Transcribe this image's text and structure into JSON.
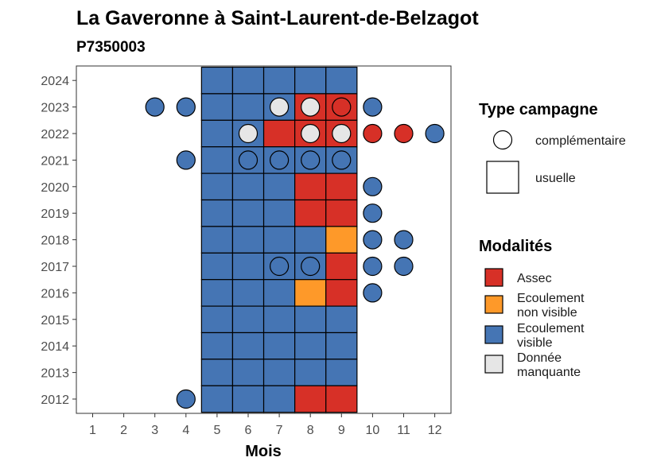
{
  "chart_data": {
    "type": "heatmap",
    "title": "La Gaveronne à Saint-Laurent-de-Belzagot",
    "subtitle": "P7350003",
    "xlabel": "Mois",
    "ylabel": "",
    "x_ticks": [
      1,
      2,
      3,
      4,
      5,
      6,
      7,
      8,
      9,
      10,
      11,
      12
    ],
    "y_ticks": [
      2012,
      2013,
      2014,
      2015,
      2016,
      2017,
      2018,
      2019,
      2020,
      2021,
      2022,
      2023,
      2024
    ],
    "grid": false,
    "colors": {
      "Assec": "#d73027",
      "Ecoulement non visible": "#fe9929",
      "Ecoulement visible": "#4575b4",
      "Donnée manquante": "#e6e6e6"
    },
    "usuelle": [
      {
        "year": 2024,
        "months": {
          "5": "Ecoulement visible",
          "6": "Ecoulement visible",
          "7": "Ecoulement visible",
          "8": "Ecoulement visible",
          "9": "Ecoulement visible"
        }
      },
      {
        "year": 2023,
        "months": {
          "5": "Ecoulement visible",
          "6": "Ecoulement visible",
          "7": "Ecoulement visible",
          "8": "Assec",
          "9": "Assec"
        }
      },
      {
        "year": 2022,
        "months": {
          "5": "Ecoulement visible",
          "6": "Ecoulement visible",
          "7": "Assec",
          "8": "Assec",
          "9": "Assec"
        }
      },
      {
        "year": 2021,
        "months": {
          "5": "Ecoulement visible",
          "6": "Ecoulement visible",
          "7": "Ecoulement visible",
          "8": "Ecoulement visible",
          "9": "Ecoulement visible"
        }
      },
      {
        "year": 2020,
        "months": {
          "5": "Ecoulement visible",
          "6": "Ecoulement visible",
          "7": "Ecoulement visible",
          "8": "Assec",
          "9": "Assec"
        }
      },
      {
        "year": 2019,
        "months": {
          "5": "Ecoulement visible",
          "6": "Ecoulement visible",
          "7": "Ecoulement visible",
          "8": "Assec",
          "9": "Assec"
        }
      },
      {
        "year": 2018,
        "months": {
          "5": "Ecoulement visible",
          "6": "Ecoulement visible",
          "7": "Ecoulement visible",
          "8": "Ecoulement visible",
          "9": "Ecoulement non visible"
        }
      },
      {
        "year": 2017,
        "months": {
          "5": "Ecoulement visible",
          "6": "Ecoulement visible",
          "7": "Ecoulement visible",
          "8": "Ecoulement visible",
          "9": "Assec"
        }
      },
      {
        "year": 2016,
        "months": {
          "5": "Ecoulement visible",
          "6": "Ecoulement visible",
          "7": "Ecoulement visible",
          "8": "Ecoulement non visible",
          "9": "Assec"
        }
      },
      {
        "year": 2015,
        "months": {
          "5": "Ecoulement visible",
          "6": "Ecoulement visible",
          "7": "Ecoulement visible",
          "8": "Ecoulement visible",
          "9": "Ecoulement visible"
        }
      },
      {
        "year": 2014,
        "months": {
          "5": "Ecoulement visible",
          "6": "Ecoulement visible",
          "7": "Ecoulement visible",
          "8": "Ecoulement visible",
          "9": "Ecoulement visible"
        }
      },
      {
        "year": 2013,
        "months": {
          "5": "Ecoulement visible",
          "6": "Ecoulement visible",
          "7": "Ecoulement visible",
          "8": "Ecoulement visible",
          "9": "Ecoulement visible"
        }
      },
      {
        "year": 2012,
        "months": {
          "5": "Ecoulement visible",
          "6": "Ecoulement visible",
          "7": "Ecoulement visible",
          "8": "Assec",
          "9": "Assec"
        }
      }
    ],
    "complementaire": [
      {
        "year": 2023,
        "month": 3,
        "modalite": "Ecoulement visible"
      },
      {
        "year": 2023,
        "month": 4,
        "modalite": "Ecoulement visible"
      },
      {
        "year": 2023,
        "month": 7,
        "modalite": "Donnée manquante"
      },
      {
        "year": 2023,
        "month": 8,
        "modalite": "Donnée manquante"
      },
      {
        "year": 2023,
        "month": 9,
        "modalite": "Assec"
      },
      {
        "year": 2023,
        "month": 10,
        "modalite": "Ecoulement visible"
      },
      {
        "year": 2022,
        "month": 6,
        "modalite": "Donnée manquante"
      },
      {
        "year": 2022,
        "month": 8,
        "modalite": "Donnée manquante"
      },
      {
        "year": 2022,
        "month": 9,
        "modalite": "Donnée manquante"
      },
      {
        "year": 2022,
        "month": 10,
        "modalite": "Assec"
      },
      {
        "year": 2022,
        "month": 11,
        "modalite": "Assec"
      },
      {
        "year": 2022,
        "month": 12,
        "modalite": "Ecoulement visible"
      },
      {
        "year": 2021,
        "month": 4,
        "modalite": "Ecoulement visible"
      },
      {
        "year": 2021,
        "month": 6,
        "modalite": "Ecoulement visible"
      },
      {
        "year": 2021,
        "month": 7,
        "modalite": "Ecoulement visible"
      },
      {
        "year": 2021,
        "month": 8,
        "modalite": "Ecoulement visible"
      },
      {
        "year": 2021,
        "month": 9,
        "modalite": "Ecoulement visible"
      },
      {
        "year": 2020,
        "month": 10,
        "modalite": "Ecoulement visible"
      },
      {
        "year": 2019,
        "month": 10,
        "modalite": "Ecoulement visible"
      },
      {
        "year": 2018,
        "month": 10,
        "modalite": "Ecoulement visible"
      },
      {
        "year": 2018,
        "month": 11,
        "modalite": "Ecoulement visible"
      },
      {
        "year": 2017,
        "month": 7,
        "modalite": "Ecoulement visible"
      },
      {
        "year": 2017,
        "month": 8,
        "modalite": "Ecoulement visible"
      },
      {
        "year": 2017,
        "month": 10,
        "modalite": "Ecoulement visible"
      },
      {
        "year": 2017,
        "month": 11,
        "modalite": "Ecoulement visible"
      },
      {
        "year": 2016,
        "month": 10,
        "modalite": "Ecoulement visible"
      },
      {
        "year": 2012,
        "month": 4,
        "modalite": "Ecoulement visible"
      }
    ],
    "legend": {
      "placement": "right",
      "type_title": "Type campagne",
      "type_items": [
        {
          "shape": "circle",
          "label": "complémentaire"
        },
        {
          "shape": "square",
          "label": "usuelle"
        }
      ],
      "modalites_title": "Modalités",
      "modalites_items": [
        {
          "key": "Assec",
          "lines": [
            "Assec"
          ]
        },
        {
          "key": "Ecoulement non visible",
          "lines": [
            "Ecoulement",
            "non visible"
          ]
        },
        {
          "key": "Ecoulement visible",
          "lines": [
            "Ecoulement",
            "visible"
          ]
        },
        {
          "key": "Donnée manquante",
          "lines": [
            "Donnée",
            "manquante"
          ]
        }
      ]
    }
  }
}
